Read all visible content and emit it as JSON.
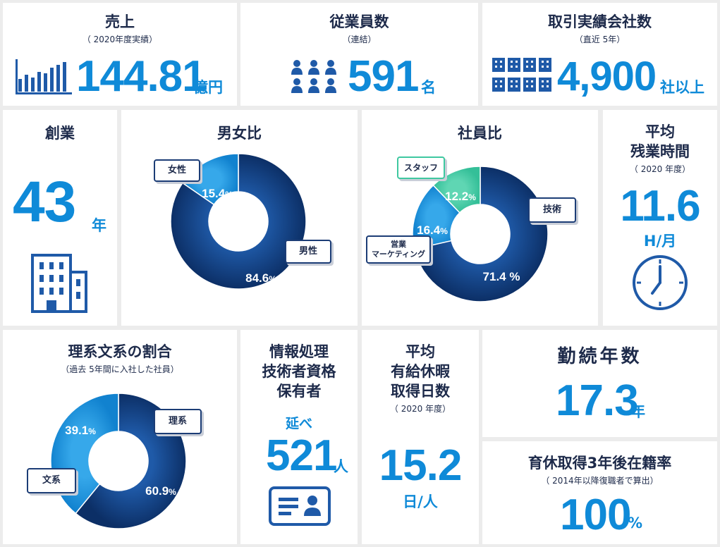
{
  "colors": {
    "accent": "#0f8ad8",
    "navy": "#0d3672",
    "mid_blue": "#1a8fd6",
    "teal": "#3ec8a0",
    "text": "#1d2a4a"
  },
  "sales": {
    "title": "売上",
    "sub": "（ 2020年度実績）",
    "value": "144.81",
    "unit": "億円",
    "icon": "bar-chart-icon"
  },
  "employees": {
    "title": "従業員数",
    "sub": "（連結）",
    "value": "591",
    "unit": "名",
    "icon": "people-icon"
  },
  "clients": {
    "title": "取引実績会社数",
    "sub": "（直近  5年）",
    "value": "4,900",
    "unit": "社以上",
    "icon": "buildings-icon"
  },
  "founded": {
    "title": "創業",
    "value": "43",
    "unit": "年",
    "icon": "office-building-icon"
  },
  "gender": {
    "title": "男女比",
    "male_label": "男性",
    "female_label": "女性",
    "male_pct": "84.6",
    "female_pct": "15.4",
    "pct_sign": "%"
  },
  "staff_ratio": {
    "title": "社員比",
    "tech_label": "技術",
    "staff_label": "スタッフ",
    "sales_label1": "営業",
    "sales_label2": "マーケティング",
    "tech_pct": "71.4 %",
    "sales_pct": "16.4",
    "staff_pct": "12.2",
    "pct_sign": "%"
  },
  "overtime": {
    "title1": "平均",
    "title2": "残業時間",
    "sub": "（ 2020 年度）",
    "value": "11.6",
    "unit": "H/月",
    "icon": "clock-icon"
  },
  "science": {
    "title": "理系文系の割合",
    "sub": "（過去  5年間に入社した社員）",
    "science_label": "理系",
    "arts_label": "文系",
    "science_pct": "60.9",
    "arts_pct": "39.1",
    "pct_sign": "%"
  },
  "certs": {
    "title1": "情報処理",
    "title2": "技術者資格",
    "title3": "保有者",
    "prefix": "延べ",
    "value": "521",
    "unit": "人",
    "icon": "id-card-icon"
  },
  "leave": {
    "title1": "平均",
    "title2": "有給休暇",
    "title3": "取得日数",
    "sub": "（ 2020 年度）",
    "value": "15.2",
    "unit": "日/人"
  },
  "tenure": {
    "title": "勤続年数",
    "value": "17.3",
    "unit": "年"
  },
  "parental": {
    "title": "育休取得3年後在籍率",
    "sub": "（ 2014年以降復職者で算出）",
    "value": "100",
    "unit": "%"
  },
  "chart_data": [
    {
      "type": "pie",
      "title": "男女比",
      "categories": [
        "男性",
        "女性"
      ],
      "values": [
        84.6,
        15.4
      ]
    },
    {
      "type": "pie",
      "title": "社員比",
      "categories": [
        "技術",
        "営業 マーケティング",
        "スタッフ"
      ],
      "values": [
        71.4,
        16.4,
        12.2
      ]
    },
    {
      "type": "pie",
      "title": "理系文系の割合",
      "categories": [
        "理系",
        "文系"
      ],
      "values": [
        60.9,
        39.1
      ]
    }
  ]
}
